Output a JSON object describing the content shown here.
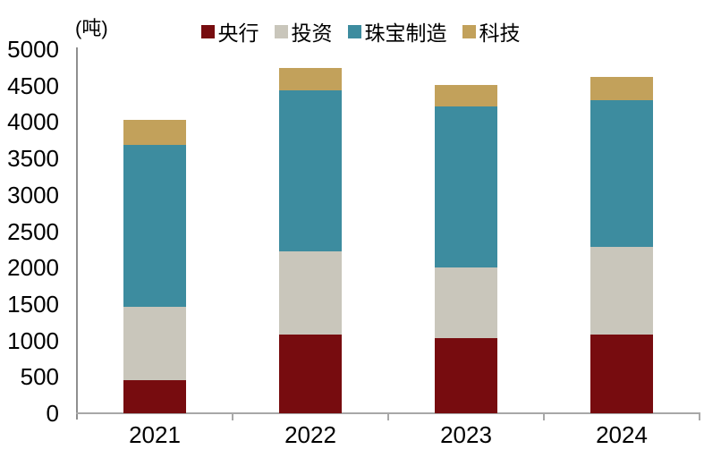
{
  "unit_label": "(吨)",
  "chart_data": {
    "type": "stacked-bar",
    "title": "",
    "ylabel": "(吨)",
    "xlabel": "",
    "ylim": [
      0,
      5000
    ],
    "ytick_step": 500,
    "yticks": [
      0,
      500,
      1000,
      1500,
      2000,
      2500,
      3000,
      3500,
      4000,
      4500,
      5000
    ],
    "grid": false,
    "legend_position": "top-center",
    "categories": [
      "2021",
      "2022",
      "2023",
      "2024"
    ],
    "series": [
      {
        "name": "央行",
        "color": "#770c0f",
        "values": [
          450,
          1080,
          1030,
          1080
        ]
      },
      {
        "name": "投资",
        "color": "#c9c6bb",
        "values": [
          1010,
          1140,
          970,
          1200
        ]
      },
      {
        "name": "珠宝制造",
        "color": "#3d8c9f",
        "values": [
          2230,
          2210,
          2210,
          2020
        ]
      },
      {
        "name": "科技",
        "color": "#c2a15b",
        "values": [
          340,
          310,
          300,
          320
        ]
      }
    ],
    "totals": [
      4030,
      4740,
      4510,
      4620
    ]
  },
  "colors": {
    "axis_line": "#a8a8a8",
    "y_axis_line": "#8f8f8f",
    "text": "#000000",
    "background": "#ffffff"
  }
}
